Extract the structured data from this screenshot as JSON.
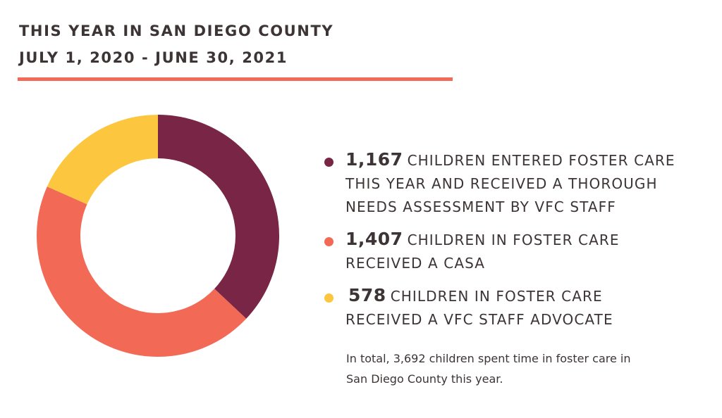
{
  "header": {
    "title": "THIS YEAR IN SAN DIEGO COUNTY",
    "subtitle": "JULY 1, 2020 - JUNE 30, 2021"
  },
  "colors": {
    "accent": "#f26a55",
    "series_1": "#782546",
    "series_2": "#f26a55",
    "series_3": "#fcc73f"
  },
  "chart_data": {
    "type": "pie",
    "donut": true,
    "categories": [
      "CHILDREN ENTERED FOSTER CARE THIS YEAR AND RECEIVED A THOROUGH NEEDS ASSESSMENT BY VFC STAFF",
      "CHILDREN IN FOSTER CARE RECEIVED A CASA",
      "CHILDREN IN FOSTER CARE RECEIVED A VFC STAFF ADVOCATE"
    ],
    "values": [
      1167,
      1407,
      578
    ],
    "colors": [
      "#782546",
      "#f26a55",
      "#fcc73f"
    ],
    "legend_position": "right"
  },
  "legend": [
    {
      "value": "1,167",
      "lines": [
        "CHILDREN ENTERED FOSTER CARE",
        "THIS YEAR AND RECEIVED A THOROUGH",
        "NEEDS ASSESSMENT BY VFC STAFF"
      ],
      "color": "#782546"
    },
    {
      "value": "1,407",
      "lines": [
        "CHILDREN IN FOSTER CARE",
        "RECEIVED A CASA"
      ],
      "color": "#f26a55"
    },
    {
      "value": "578",
      "lines": [
        "CHILDREN IN FOSTER CARE",
        "RECEIVED A VFC STAFF ADVOCATE"
      ],
      "color": "#fcc73f"
    }
  ],
  "note": {
    "line1": "In total, 3,692 children spent time in foster care in",
    "line2": "San Diego County this year."
  }
}
